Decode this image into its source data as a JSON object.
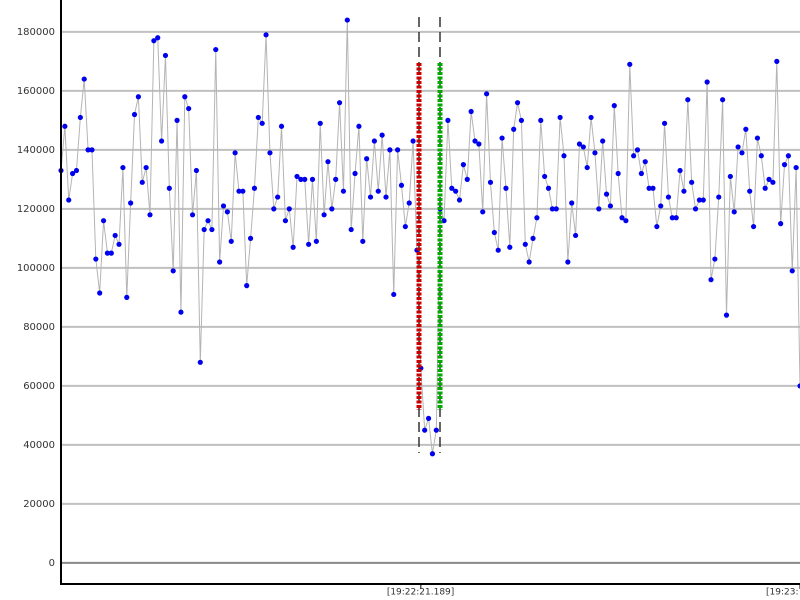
{
  "chart_data": {
    "type": "line",
    "values": [
      133000,
      148000,
      123000,
      132000,
      133000,
      151000,
      164000,
      140000,
      140000,
      103000,
      91500,
      116000,
      105000,
      105000,
      111000,
      108000,
      134000,
      90000,
      122000,
      152000,
      158000,
      129000,
      134000,
      118000,
      177000,
      178000,
      143000,
      172000,
      127000,
      99000,
      150000,
      85000,
      158000,
      154000,
      118000,
      133000,
      68000,
      113000,
      116000,
      113000,
      174000,
      102000,
      121000,
      119000,
      109000,
      139000,
      126000,
      126000,
      94000,
      110000,
      127000,
      151000,
      149000,
      179000,
      139000,
      120000,
      124000,
      148000,
      116000,
      120000,
      107000,
      131000,
      130000,
      130000,
      108000,
      130000,
      109000,
      149000,
      118000,
      136000,
      120000,
      130000,
      156000,
      126000,
      184000,
      113000,
      132000,
      148000,
      109000,
      137000,
      124000,
      143000,
      126000,
      145000,
      124000,
      140000,
      91000,
      140000,
      128000,
      114000,
      122000,
      143000,
      106000,
      66000,
      45000,
      49000,
      37000,
      45000,
      120000,
      116000,
      150000,
      127000,
      126000,
      123000,
      135000,
      130000,
      153000,
      143000,
      142000,
      119000,
      159000,
      129000,
      112000,
      106000,
      144000,
      127000,
      107000,
      147000,
      156000,
      150000,
      108000,
      102000,
      110000,
      117000,
      150000,
      131000,
      127000,
      120000,
      120000,
      151000,
      138000,
      102000,
      122000,
      111000,
      142000,
      141000,
      134000,
      151000,
      139000,
      120000,
      143000,
      125000,
      121000,
      155000,
      132000,
      117000,
      116000,
      169000,
      138000,
      140000,
      132000,
      136000,
      127000,
      127000,
      114000,
      121000,
      149000,
      124000,
      117000,
      117000,
      133000,
      126000,
      157000,
      129000,
      120000,
      123000,
      123000,
      163000,
      96000,
      103000,
      124000,
      157000,
      84000,
      131000,
      119000,
      141000,
      139000,
      147000,
      126000,
      114000,
      144000,
      138000,
      127000,
      130000,
      129000,
      170000,
      115000,
      135000,
      138000,
      99000,
      134000,
      60000
    ],
    "color": "#0000ee",
    "line_color": "#b4b4b4",
    "xlim": [
      0,
      191
    ],
    "xticks": [
      {
        "value": 93,
        "label": "[19:22:21.189]"
      },
      {
        "value": 191,
        "label": "[19:23:"
      }
    ],
    "ylim": [
      -6800,
      190800
    ],
    "yticks": [
      0,
      20000,
      40000,
      60000,
      80000,
      100000,
      120000,
      140000,
      160000,
      180000
    ],
    "grid": true
  }
}
